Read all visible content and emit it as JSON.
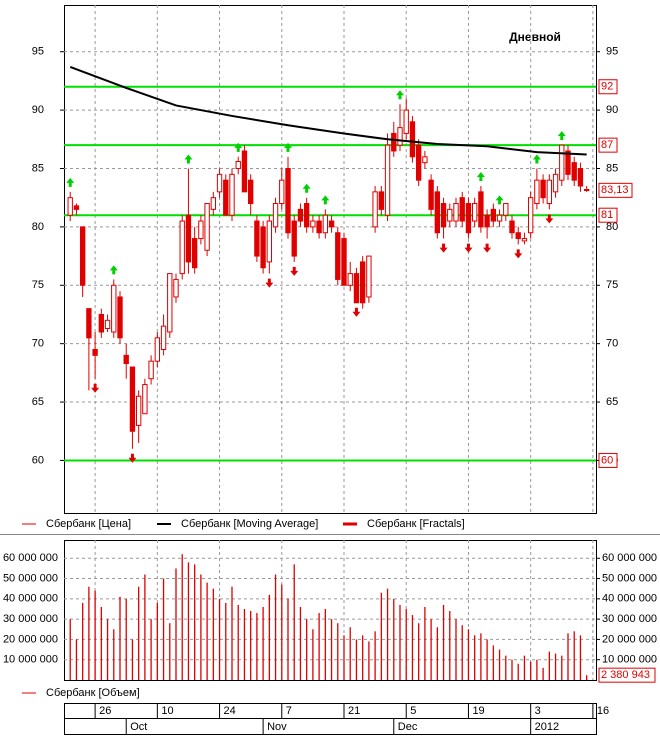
{
  "chart_data": {
    "type": "candlestick",
    "title": "Дневной",
    "xlim": [
      -1,
      84.5
    ],
    "xticks": [
      {
        "value": 4,
        "label": "26"
      },
      {
        "value": 14,
        "label": "10"
      },
      {
        "value": 24,
        "label": "24"
      },
      {
        "value": 34,
        "label": "7"
      },
      {
        "value": 44,
        "label": "21"
      },
      {
        "value": 54,
        "label": "5"
      },
      {
        "value": 64,
        "label": "19"
      },
      {
        "value": 74,
        "label": "3"
      },
      {
        "value": 84,
        "label": "16"
      }
    ],
    "month_ticks": [
      {
        "value": 9,
        "label": "Oct"
      },
      {
        "value": 31,
        "label": "Nov"
      },
      {
        "value": 52,
        "label": "Dec"
      },
      {
        "value": 74,
        "label": "2012"
      }
    ],
    "ylim": [
      55.5,
      99
    ],
    "yticks": [
      60,
      65,
      70,
      75,
      80,
      85,
      90,
      95
    ],
    "grid": true,
    "price": {
      "name": "Сбербанк [Цена]",
      "color": "#e00000",
      "open": [
        81,
        81.8,
        80,
        73,
        69.5,
        72.5,
        71.3,
        71,
        74,
        69,
        68,
        63,
        64,
        67,
        68.5,
        69.5,
        71,
        74,
        76,
        81,
        79,
        79,
        78,
        81.5,
        83,
        84,
        81,
        85,
        86.5,
        84,
        80.5,
        80,
        77,
        80,
        82,
        85,
        80.5,
        81.5,
        82,
        80,
        80.5,
        79.5,
        80.5,
        79.5,
        79,
        75,
        76,
        77,
        74,
        80,
        83,
        81,
        88,
        87,
        88,
        89,
        87,
        85.5,
        84,
        83,
        82,
        80.5,
        80.5,
        82.5,
        82,
        80.5,
        83,
        81,
        81.5,
        80.5,
        81,
        80.5,
        79.5,
        78.8,
        79.5,
        82,
        84,
        82,
        83,
        84,
        86.5,
        85.5,
        85,
        83.2
      ],
      "high": [
        83,
        82,
        80,
        73,
        71,
        73,
        72.5,
        75.5,
        74.5,
        70,
        68,
        66,
        67,
        69,
        71,
        72.5,
        76,
        76,
        81,
        85,
        80,
        81,
        82,
        83,
        85,
        84.5,
        85,
        86,
        87,
        84.5,
        81,
        80.5,
        81,
        82.5,
        85,
        86,
        81,
        82,
        82.5,
        81,
        81,
        81.5,
        81,
        80,
        79.5,
        77,
        76.5,
        77.5,
        77.5,
        83.5,
        83.5,
        88,
        89,
        90.5,
        91,
        89.5,
        87.5,
        86.5,
        84.5,
        83.5,
        82.5,
        82,
        82.5,
        83,
        82.5,
        82.5,
        83.5,
        81.5,
        82,
        81.5,
        82,
        81,
        80,
        79.5,
        83,
        85,
        84.5,
        84.5,
        85,
        87,
        87,
        86,
        85.5,
        83.5
      ],
      "low": [
        80.5,
        81,
        74,
        66,
        67,
        70.5,
        71,
        70.5,
        70,
        67,
        61,
        61.5,
        64,
        66.5,
        68,
        69,
        70.5,
        73.5,
        75.5,
        76,
        76,
        78.5,
        77.5,
        81,
        82.5,
        81,
        80.5,
        84.5,
        83,
        81,
        77,
        76,
        76,
        79.5,
        81.5,
        79,
        77,
        80,
        79.5,
        79.5,
        79,
        79,
        79.5,
        75,
        75,
        74.5,
        73.5,
        73,
        73.5,
        79.5,
        81,
        80.5,
        86,
        86.5,
        87.5,
        85.5,
        83.5,
        85,
        81,
        79,
        79,
        80,
        80,
        80,
        79,
        80,
        79.5,
        79,
        80,
        80,
        80.5,
        79,
        78.5,
        78.5,
        79,
        81.5,
        82,
        81.5,
        82.5,
        83.5,
        84,
        83.5,
        83,
        83
      ],
      "close": [
        82.5,
        81.5,
        75,
        70.5,
        69,
        71,
        72,
        75,
        70.5,
        68.3,
        62.5,
        65.5,
        66.5,
        68.5,
        70.5,
        71.5,
        76,
        75.5,
        80.5,
        77,
        76.5,
        80.5,
        82,
        82.5,
        84.5,
        81,
        84.5,
        85.6,
        83,
        82,
        77.5,
        76.5,
        80.5,
        82,
        84,
        79.5,
        77.5,
        80.5,
        80,
        80.5,
        79.5,
        81,
        80,
        75.5,
        75,
        76,
        73.5,
        73.5,
        77.5,
        83,
        81.5,
        87,
        86.5,
        88.5,
        90,
        86,
        84,
        86,
        81.5,
        79.5,
        80,
        81.5,
        82,
        80.5,
        79.5,
        82,
        80,
        80,
        80.5,
        81,
        82,
        79.5,
        79,
        79,
        82.5,
        84,
        82.5,
        84,
        84.5,
        87,
        84.5,
        84,
        83.5,
        83.13
      ]
    },
    "current_price": {
      "value": 83.13,
      "label": "83,13"
    },
    "moving_average": {
      "name": "Сбербанк [Moving Average]",
      "color": "#000000",
      "x": [
        0,
        9,
        17,
        26,
        35,
        44,
        51,
        59,
        67,
        75,
        83
      ],
      "values": [
        93.7,
        91.9,
        90.4,
        89.5,
        88.7,
        88,
        87.5,
        87.1,
        86.9,
        86.4,
        86.2
      ]
    },
    "fractals": {
      "name": "Сбербанк [Fractals]",
      "up_color": "#00d000",
      "down_color": "#e00000",
      "up_x": [
        0,
        7,
        19,
        27,
        35,
        38,
        41,
        53,
        66,
        69,
        75,
        79
      ],
      "up": [
        83,
        75.5,
        85,
        86,
        86,
        82.5,
        81.5,
        90.5,
        83.5,
        81.5,
        85,
        87
      ],
      "down_x": [
        4,
        10,
        32,
        36,
        46,
        60,
        64,
        67,
        72,
        77
      ],
      "down": [
        67,
        61,
        76,
        77,
        73.5,
        79,
        79,
        79,
        78.5,
        81.5
      ]
    },
    "levels": [
      92,
      87,
      81,
      60
    ],
    "level_color": "#00e000",
    "volume": {
      "name": "Сбербанк [Объем]",
      "color": "#e00000",
      "ylim": [
        0,
        69000000
      ],
      "yticks": [
        {
          "value": 10000000,
          "label": "10 000 000"
        },
        {
          "value": 20000000,
          "label": "20 000 000"
        },
        {
          "value": 30000000,
          "label": "30 000 000"
        },
        {
          "value": 40000000,
          "label": "40 000 000"
        },
        {
          "value": 50000000,
          "label": "50 000 000"
        },
        {
          "value": 60000000,
          "label": "60 000 000"
        }
      ],
      "values": [
        30000000,
        20000000,
        38000000,
        46000000,
        44000000,
        36000000,
        30000000,
        25000000,
        41000000,
        40000000,
        20000000,
        46000000,
        52000000,
        30000000,
        38000000,
        50000000,
        28000000,
        55000000,
        62000000,
        58000000,
        57000000,
        52000000,
        48000000,
        45000000,
        40000000,
        38000000,
        46000000,
        37000000,
        35000000,
        34000000,
        33000000,
        36000000,
        42000000,
        52000000,
        47000000,
        40000000,
        57000000,
        36000000,
        30000000,
        25000000,
        33000000,
        35000000,
        30000000,
        28000000,
        22000000,
        26000000,
        20000000,
        22000000,
        19000000,
        24000000,
        43000000,
        45000000,
        40000000,
        37000000,
        35000000,
        32000000,
        28000000,
        36000000,
        30000000,
        26000000,
        37000000,
        34000000,
        30000000,
        27000000,
        25000000,
        22000000,
        23000000,
        20000000,
        17000000,
        15000000,
        12000000,
        10000000,
        8000000,
        12000000,
        9000000,
        10000000,
        6000000,
        14000000,
        13000000,
        12000000,
        23000000,
        24000000,
        22000000,
        2380943
      ],
      "current": {
        "value": 2380943,
        "label": "2 380 943"
      }
    }
  }
}
